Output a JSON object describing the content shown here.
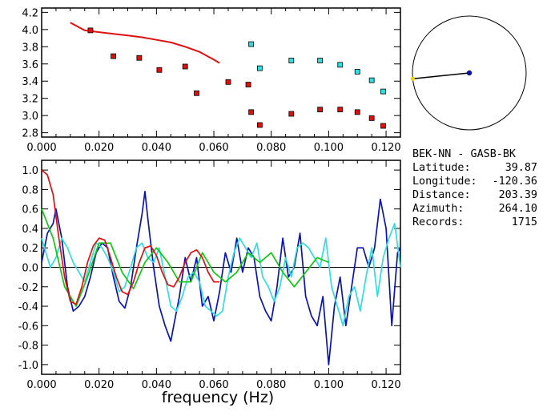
{
  "info": {
    "station": "BEK-NN - GASB-BK",
    "rows": [
      {
        "label": "Latitude:",
        "value": "39.87"
      },
      {
        "label": "Longitude:",
        "value": "-120.36"
      },
      {
        "label": "Distance:",
        "value": "203.39"
      },
      {
        "label": "Azimuth:",
        "value": "264.10"
      },
      {
        "label": "Records:",
        "value": "1715"
      }
    ]
  },
  "colors": {
    "red": "#e01010",
    "cyan": "#30dede",
    "blue": "#0a14b4",
    "green": "#10c810",
    "yellow": "#f0d000"
  },
  "chart_data": [
    {
      "type": "scatter",
      "title": "",
      "xlim": [
        0.0,
        0.125
      ],
      "ylim": [
        2.75,
        4.25
      ],
      "xticks": [
        "0.000",
        "0.020",
        "0.040",
        "0.060",
        "0.080",
        "0.100",
        "0.120"
      ],
      "yticks": [
        "2.8",
        "3.0",
        "3.2",
        "3.4",
        "3.6",
        "3.8",
        "4.0",
        "4.2"
      ],
      "curve": {
        "color": "red",
        "x": [
          0.01,
          0.015,
          0.02,
          0.025,
          0.03,
          0.035,
          0.04,
          0.045,
          0.05,
          0.055,
          0.06,
          0.062
        ],
        "y": [
          4.08,
          3.99,
          3.97,
          3.95,
          3.93,
          3.91,
          3.88,
          3.85,
          3.8,
          3.74,
          3.65,
          3.61
        ]
      },
      "series": [
        {
          "color": "red",
          "x": [
            0.017,
            0.025,
            0.034,
            0.041,
            0.05,
            0.054,
            0.065,
            0.072,
            0.073,
            0.076,
            0.087,
            0.097,
            0.104,
            0.11,
            0.115,
            0.119
          ],
          "y": [
            3.99,
            3.69,
            3.67,
            3.53,
            3.57,
            3.26,
            3.39,
            3.36,
            3.04,
            2.89,
            3.02,
            3.07,
            3.07,
            3.04,
            2.97,
            2.88
          ]
        },
        {
          "color": "cyan",
          "x": [
            0.073,
            0.076,
            0.087,
            0.097,
            0.104,
            0.11,
            0.115,
            0.119
          ],
          "y": [
            3.83,
            3.55,
            3.64,
            3.64,
            3.59,
            3.51,
            3.41,
            3.28
          ]
        }
      ]
    },
    {
      "type": "line",
      "xlabel": "frequency (Hz)",
      "xlim": [
        0.0,
        0.125
      ],
      "ylim": [
        -1.1,
        1.1
      ],
      "xticks": [
        "0.000",
        "0.020",
        "0.040",
        "0.060",
        "0.080",
        "0.100",
        "0.120"
      ],
      "yticks": [
        "1.0",
        "0.8",
        "0.6",
        "0.4",
        "0.2",
        "0.0",
        "-0.2",
        "-0.4",
        "-0.6",
        "-0.8",
        "-1.0"
      ],
      "series": [
        {
          "color": "blue",
          "x": [
            0.0,
            0.002,
            0.004,
            0.005,
            0.007,
            0.009,
            0.011,
            0.013,
            0.015,
            0.017,
            0.019,
            0.021,
            0.023,
            0.025,
            0.027,
            0.029,
            0.031,
            0.033,
            0.035,
            0.036,
            0.037,
            0.039,
            0.041,
            0.043,
            0.045,
            0.046,
            0.048,
            0.05,
            0.052,
            0.054,
            0.056,
            0.058,
            0.06,
            0.062,
            0.064,
            0.066,
            0.068,
            0.07,
            0.072,
            0.074,
            0.076,
            0.078,
            0.08,
            0.082,
            0.084,
            0.086,
            0.088,
            0.09,
            0.092,
            0.094,
            0.096,
            0.098,
            0.1,
            0.102,
            0.104,
            0.106,
            0.108,
            0.11,
            0.112,
            0.114,
            0.116,
            0.118,
            0.12,
            0.122,
            0.124,
            0.125
          ],
          "y": [
            0.05,
            0.35,
            0.45,
            0.6,
            0.3,
            -0.2,
            -0.45,
            -0.4,
            -0.3,
            -0.1,
            0.15,
            0.25,
            0.2,
            -0.1,
            -0.35,
            -0.42,
            -0.2,
            0.2,
            0.55,
            0.78,
            0.5,
            0.0,
            -0.4,
            -0.6,
            -0.76,
            -0.6,
            -0.3,
            0.1,
            -0.15,
            0.1,
            -0.4,
            -0.3,
            -0.55,
            -0.25,
            0.15,
            -0.05,
            0.3,
            -0.05,
            0.2,
            0.1,
            -0.3,
            -0.45,
            -0.55,
            -0.2,
            0.3,
            -0.1,
            0.0,
            0.35,
            -0.3,
            -0.5,
            -0.6,
            -0.3,
            -1.0,
            -0.4,
            -0.1,
            -0.6,
            -0.2,
            0.2,
            0.2,
            0.0,
            0.2,
            0.7,
            0.4,
            -0.6,
            0.15,
            0.2
          ]
        },
        {
          "color": "cyan",
          "x": [
            0.0,
            0.003,
            0.005,
            0.007,
            0.009,
            0.011,
            0.013,
            0.015,
            0.017,
            0.019,
            0.021,
            0.023,
            0.025,
            0.027,
            0.029,
            0.031,
            0.033,
            0.035,
            0.037,
            0.039,
            0.041,
            0.043,
            0.045,
            0.047,
            0.049,
            0.051,
            0.053,
            0.055,
            0.057,
            0.059,
            0.061,
            0.063,
            0.065,
            0.067,
            0.069,
            0.071,
            0.073,
            0.075,
            0.077,
            0.079,
            0.081,
            0.083,
            0.085,
            0.087,
            0.089,
            0.091,
            0.093,
            0.095,
            0.097,
            0.099,
            0.101,
            0.103,
            0.105,
            0.107,
            0.109,
            0.111,
            0.113,
            0.115,
            0.117,
            0.119,
            0.121,
            0.123,
            0.125
          ],
          "y": [
            0.3,
            0.0,
            0.1,
            0.3,
            0.2,
            0.05,
            -0.05,
            -0.15,
            0.05,
            0.25,
            0.2,
            0.1,
            -0.05,
            -0.25,
            -0.2,
            0.0,
            0.2,
            0.25,
            0.1,
            0.05,
            0.2,
            -0.1,
            -0.4,
            -0.45,
            -0.3,
            -0.1,
            -0.05,
            -0.15,
            -0.4,
            -0.45,
            -0.5,
            -0.45,
            -0.1,
            0.15,
            0.3,
            0.2,
            0.1,
            0.25,
            -0.1,
            -0.2,
            -0.35,
            -0.2,
            0.1,
            -0.1,
            0.2,
            0.25,
            0.2,
            0.1,
            0.0,
            0.3,
            -0.2,
            -0.4,
            -0.6,
            -0.3,
            -0.2,
            -0.45,
            -0.1,
            0.2,
            -0.3,
            0.1,
            0.3,
            0.45,
            0.0
          ]
        },
        {
          "color": "green",
          "x": [
            0.0,
            0.004,
            0.008,
            0.012,
            0.016,
            0.02,
            0.024,
            0.028,
            0.032,
            0.036,
            0.04,
            0.044,
            0.048,
            0.052,
            0.056,
            0.06,
            0.064,
            0.068,
            0.072,
            0.076,
            0.08,
            0.084,
            0.088,
            0.092,
            0.096,
            0.1
          ],
          "y": [
            0.6,
            0.3,
            -0.2,
            -0.4,
            -0.1,
            0.25,
            0.25,
            -0.05,
            -0.22,
            0.05,
            0.2,
            0.05,
            -0.15,
            -0.15,
            0.15,
            -0.05,
            -0.15,
            -0.05,
            0.15,
            0.05,
            0.15,
            -0.05,
            -0.2,
            -0.05,
            0.1,
            0.05
          ]
        },
        {
          "color": "red",
          "x": [
            0.0,
            0.002,
            0.004,
            0.006,
            0.008,
            0.01,
            0.012,
            0.014,
            0.016,
            0.018,
            0.02,
            0.022,
            0.024,
            0.026,
            0.028,
            0.03,
            0.032,
            0.034,
            0.036,
            0.038,
            0.04,
            0.042,
            0.044,
            0.046,
            0.048,
            0.05,
            0.052,
            0.054,
            0.056,
            0.058,
            0.06,
            0.062
          ],
          "y": [
            1.0,
            0.95,
            0.75,
            0.3,
            -0.1,
            -0.35,
            -0.38,
            -0.2,
            0.05,
            0.22,
            0.3,
            0.28,
            0.1,
            -0.1,
            -0.25,
            -0.28,
            -0.15,
            0.05,
            0.2,
            0.22,
            0.12,
            -0.05,
            -0.18,
            -0.2,
            -0.1,
            0.05,
            0.15,
            0.18,
            0.1,
            -0.05,
            -0.15,
            -0.15
          ]
        }
      ],
      "zero_line": true
    }
  ],
  "azimuth_plot": {
    "azimuth_deg": 264.1
  }
}
